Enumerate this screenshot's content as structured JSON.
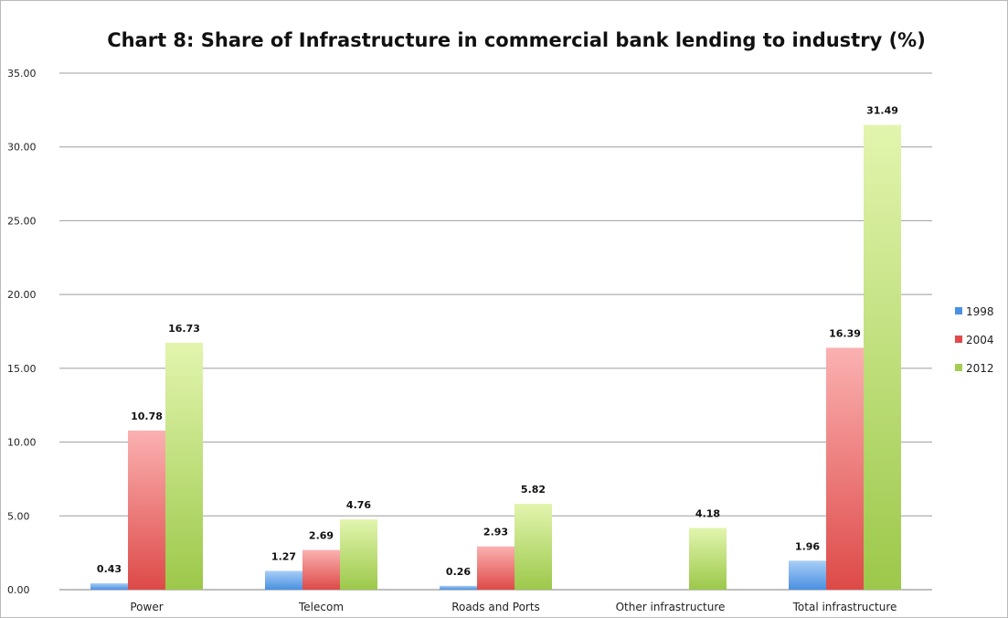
{
  "chart_data": {
    "type": "bar",
    "title": "Chart 8: Share of Infrastructure in commercial bank lending to industry (%)",
    "xlabel": "",
    "ylabel": "",
    "ylim": [
      0,
      35
    ],
    "yticks": [
      "0.00",
      "5.00",
      "10.00",
      "15.00",
      "20.00",
      "25.00",
      "30.00",
      "35.00"
    ],
    "grid": true,
    "legend_position": "right",
    "categories": [
      "Power",
      "Telecom",
      "Roads and Ports",
      "Other infrastructure",
      "Total infrastructure"
    ],
    "series": [
      {
        "name": "1998",
        "color": "#4a90e2",
        "values": [
          0.43,
          1.27,
          0.26,
          null,
          1.96
        ],
        "labels": [
          "0.43",
          "1.27",
          "0.26",
          "",
          "1.96"
        ]
      },
      {
        "name": "2004",
        "color": "#e24a4a",
        "values": [
          10.78,
          2.69,
          2.93,
          null,
          16.39
        ],
        "labels": [
          "10.78",
          "2.69",
          "2.93",
          "",
          "16.39"
        ]
      },
      {
        "name": "2012",
        "color": "#a3cc52",
        "values": [
          16.73,
          4.76,
          5.82,
          4.18,
          31.49
        ],
        "labels": [
          "16.73",
          "4.76",
          "5.82",
          "4.18",
          "31.49"
        ]
      }
    ]
  }
}
